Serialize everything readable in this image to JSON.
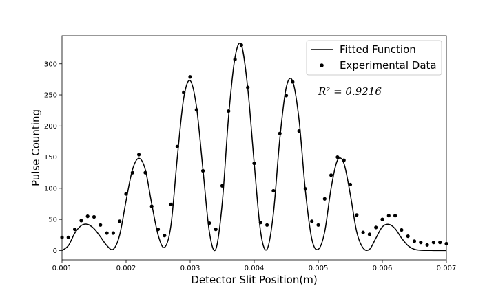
{
  "chart_data": {
    "type": "scatter",
    "xlabel": "Detector Slit Position(m)",
    "ylabel": "Pulse Counting",
    "xlim": [
      0.001,
      0.007
    ],
    "ylim": [
      -15,
      345
    ],
    "xticks": [
      0.001,
      0.002,
      0.003,
      0.004,
      0.005,
      0.006,
      0.007
    ],
    "xtick_labels": [
      "0.001",
      "0.002",
      "0.003",
      "0.004",
      "0.005",
      "0.006",
      "0.007"
    ],
    "yticks": [
      0,
      50,
      100,
      150,
      200,
      250,
      300
    ],
    "ytick_labels": [
      "0",
      "50",
      "100",
      "150",
      "200",
      "250",
      "300"
    ],
    "grid": false,
    "legend_position": "top-right",
    "annotation": "R² = 0.9216",
    "series": [
      {
        "name": "Fitted Function",
        "kind": "line",
        "color": "#000000",
        "x": [
          0.001,
          0.0011,
          0.0012,
          0.0013,
          0.0014,
          0.0015,
          0.0016,
          0.0017,
          0.0018,
          0.0019,
          0.002,
          0.0021,
          0.0022,
          0.0023,
          0.0024,
          0.0025,
          0.0026,
          0.0027,
          0.0028,
          0.0029,
          0.003,
          0.0031,
          0.0032,
          0.0033,
          0.0034,
          0.0035,
          0.0036,
          0.0037,
          0.0038,
          0.0039,
          0.004,
          0.0041,
          0.0042,
          0.0043,
          0.0044,
          0.0045,
          0.0046,
          0.0047,
          0.0048,
          0.0049,
          0.005,
          0.0051,
          0.0052,
          0.0053,
          0.0054,
          0.0055,
          0.0056,
          0.0057,
          0.0058,
          0.0059,
          0.006,
          0.0061,
          0.0062,
          0.0063,
          0.0064,
          0.0065,
          0.0066,
          0.0067,
          0.0068,
          0.0069,
          0.007
        ],
        "y": [
          0,
          8,
          28,
          40,
          42,
          35,
          22,
          8,
          2,
          25,
          80,
          130,
          148,
          130,
          75,
          25,
          5,
          40,
          150,
          245,
          273,
          230,
          130,
          30,
          2,
          75,
          215,
          310,
          330,
          260,
          140,
          30,
          2,
          60,
          180,
          262,
          272,
          210,
          95,
          18,
          2,
          30,
          100,
          145,
          140,
          90,
          30,
          4,
          2,
          20,
          38,
          42,
          35,
          20,
          8,
          2,
          0.5,
          0.2,
          0.1,
          0,
          0
        ]
      },
      {
        "name": "Experimental Data",
        "kind": "scatter",
        "color": "#000000",
        "x": [
          0.001,
          0.0011,
          0.0012,
          0.0013,
          0.0014,
          0.0015,
          0.0016,
          0.0017,
          0.0018,
          0.0019,
          0.002,
          0.0021,
          0.0022,
          0.0023,
          0.0024,
          0.0025,
          0.0026,
          0.0027,
          0.0028,
          0.0029,
          0.003,
          0.0031,
          0.0032,
          0.0033,
          0.0034,
          0.0035,
          0.0036,
          0.0037,
          0.0038,
          0.0039,
          0.004,
          0.0041,
          0.0042,
          0.0043,
          0.0044,
          0.0045,
          0.0046,
          0.0047,
          0.0048,
          0.0049,
          0.005,
          0.0051,
          0.0052,
          0.0053,
          0.0054,
          0.0055,
          0.0056,
          0.0057,
          0.0058,
          0.0059,
          0.006,
          0.0061,
          0.0062,
          0.0063,
          0.0064,
          0.0065,
          0.0066,
          0.0067,
          0.0068,
          0.0069,
          0.007
        ],
        "y": [
          21,
          21,
          34,
          48,
          55,
          54,
          41,
          28,
          28,
          47,
          91,
          125,
          154,
          125,
          71,
          34,
          24,
          74,
          167,
          254,
          279,
          226,
          128,
          44,
          34,
          104,
          224,
          307,
          330,
          262,
          140,
          45,
          41,
          96,
          188,
          249,
          271,
          192,
          99,
          47,
          41,
          83,
          121,
          150,
          145,
          106,
          57,
          29,
          26,
          37,
          50,
          56,
          56,
          33,
          23,
          15,
          13,
          9,
          13,
          13,
          11
        ]
      }
    ]
  }
}
